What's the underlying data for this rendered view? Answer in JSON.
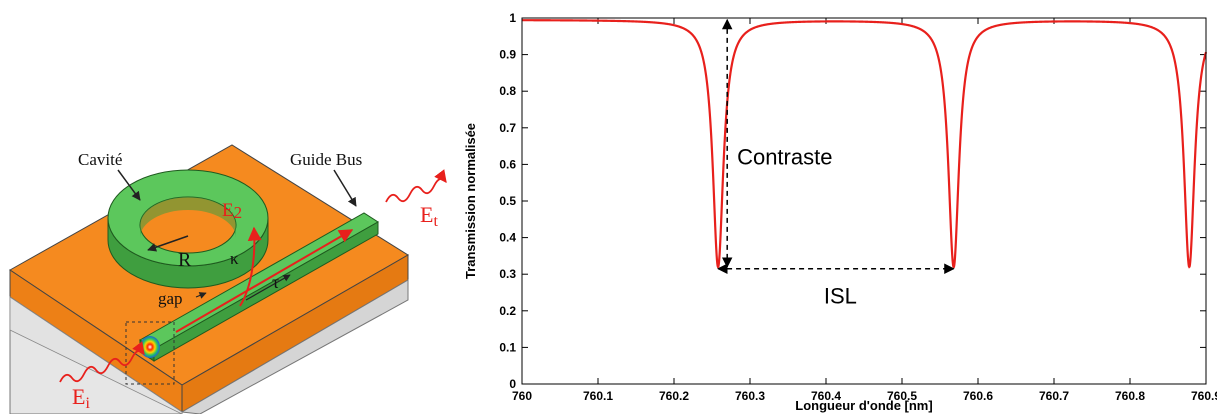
{
  "diagram": {
    "cavity_label": "Cavité",
    "bus_label": "Guide Bus",
    "radius_label": "R",
    "gap_label": "gap",
    "kappa_label": "κ",
    "tau_label": "τ",
    "e2_main": "E",
    "e2_sub": "2",
    "et_main": "E",
    "et_sub": "t",
    "ei_main": "E",
    "ei_sub": "i",
    "colors": {
      "substrate_top": "#F58A1F",
      "ring": "#5CC75C",
      "field": "#E8201C"
    }
  },
  "chart_data": {
    "type": "line",
    "xlabel": "Longueur d'onde [nm]",
    "ylabel": "Transmission normalisée",
    "xlim": [
      760,
      760.9
    ],
    "ylim": [
      0,
      1
    ],
    "xticks": [
      "760",
      "760.1",
      "760.2",
      "760.3",
      "760.4",
      "760.5",
      "760.6",
      "760.7",
      "760.8",
      "760.9"
    ],
    "yticks": [
      "0",
      "0.1",
      "0.2",
      "0.3",
      "0.4",
      "0.5",
      "0.6",
      "0.7",
      "0.8",
      "0.9",
      "1"
    ],
    "resonances_nm": [
      760.258,
      760.568,
      760.878
    ],
    "min_transmission": 0.32,
    "max_transmission": 0.995,
    "line_color": "#E8201C",
    "annotations": {
      "contrast_label": "Contraste",
      "fsr_label": "ISL"
    }
  }
}
